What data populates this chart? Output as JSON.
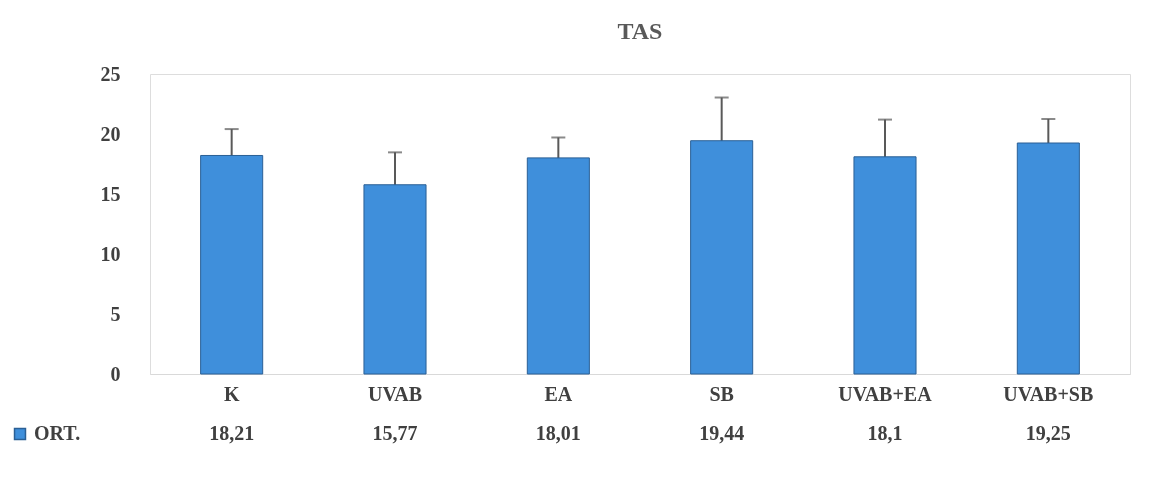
{
  "chart_data": {
    "type": "bar",
    "title": "TAS",
    "categories": [
      "K",
      "UVAB",
      "EA",
      "SB",
      "UVAB+EA",
      "UVAB+SB"
    ],
    "series": [
      {
        "name": "ORT.",
        "color": "#3f8fdb",
        "values": [
          18.21,
          15.77,
          18.01,
          19.44,
          18.1,
          19.25
        ],
        "errors": [
          2.2,
          2.7,
          1.7,
          3.6,
          3.1,
          2.0
        ],
        "value_labels": [
          "18,21",
          "15,77",
          "18,01",
          "19,44",
          "18,1",
          "19,25"
        ]
      }
    ],
    "ylim": [
      0,
      25
    ],
    "yticks": [
      0,
      5,
      10,
      15,
      20,
      25
    ],
    "grid": false,
    "legend": "bottom left"
  }
}
